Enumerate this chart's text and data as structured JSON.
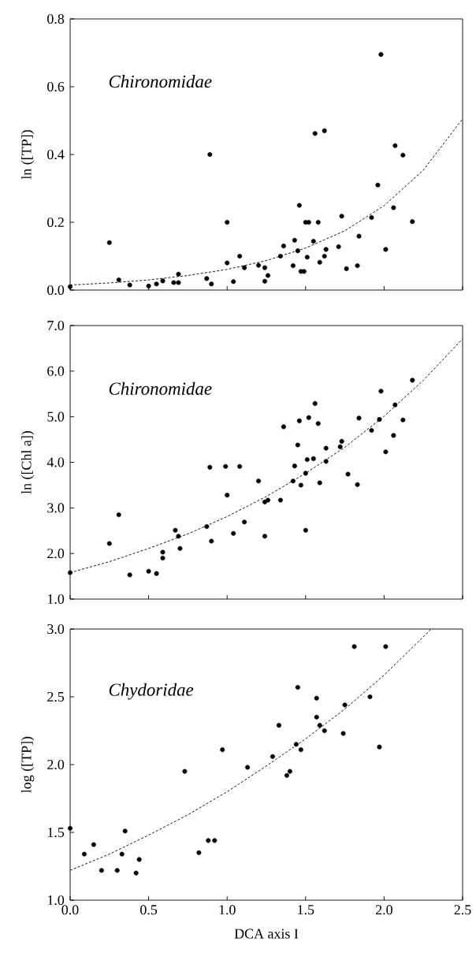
{
  "chart_data": [
    {
      "type": "scatter",
      "ylabel": "ln ([TP])",
      "annotations": [
        "Chironomidae"
      ],
      "xlim": [
        0,
        2.5
      ],
      "ylim": [
        0,
        0.8
      ],
      "xticks": [
        {
          "value": 0,
          "label": null
        },
        {
          "value": 0.5,
          "label": null
        },
        {
          "value": 1,
          "label": null
        },
        {
          "value": 1.5,
          "label": null
        },
        {
          "value": 2,
          "label": null
        },
        {
          "value": 2.5,
          "label": null
        }
      ],
      "yticks": [
        {
          "value": 0,
          "label": "0.0"
        },
        0.2,
        0.4,
        0.6,
        0.8
      ],
      "tick_labels": "y",
      "series": [
        {
          "color": "#000000",
          "marker": "circle",
          "x": [
            0,
            0.25,
            0.31,
            0.38,
            0.5,
            0.55,
            0.59,
            0.66,
            0.69,
            0.69,
            0.87,
            0.89,
            0.9,
            1.0,
            1.0,
            1.04,
            1.08,
            1.11,
            1.2,
            1.24,
            1.24,
            1.26,
            1.34,
            1.36,
            1.42,
            1.43,
            1.45,
            1.46,
            1.47,
            1.49,
            1.5,
            1.52,
            1.51,
            1.55,
            1.56,
            1.58,
            1.59,
            1.62,
            1.63,
            1.62,
            1.71,
            1.73,
            1.76,
            1.83,
            1.84,
            1.92,
            1.96,
            1.98,
            2.01,
            2.06,
            2.07,
            2.12,
            2.18
          ],
          "values": [
            0.01,
            0.14,
            0.03,
            0.015,
            0.012,
            0.018,
            0.027,
            0.022,
            0.047,
            0.022,
            0.034,
            0.4,
            0.018,
            0.2,
            0.08,
            0.025,
            0.1,
            0.066,
            0.073,
            0.066,
            0.026,
            0.043,
            0.1,
            0.13,
            0.072,
            0.147,
            0.116,
            0.25,
            0.055,
            0.055,
            0.2,
            0.2,
            0.097,
            0.144,
            0.462,
            0.2,
            0.082,
            0.47,
            0.12,
            0.1,
            0.128,
            0.218,
            0.063,
            0.072,
            0.159,
            0.214,
            0.31,
            0.695,
            0.12,
            0.243,
            0.426,
            0.398,
            0.202
          ]
        },
        {
          "type": "line",
          "color": "#000000",
          "marker": "none",
          "line_style": "dashed",
          "x": [
            0,
            0.25,
            0.5,
            0.75,
            1.0,
            1.25,
            1.5,
            1.75,
            2.0,
            2.25,
            2.5
          ],
          "values": [
            0.015,
            0.021,
            0.03,
            0.043,
            0.061,
            0.087,
            0.124,
            0.175,
            0.249,
            0.354,
            0.505
          ]
        }
      ]
    },
    {
      "type": "scatter",
      "ylabel": "ln ([Chl a])",
      "annotations": [
        "Chironomidae"
      ],
      "xlim": [
        0,
        2.5
      ],
      "ylim": [
        1,
        7
      ],
      "xticks": [
        {
          "value": 0,
          "label": null
        },
        {
          "value": 0.5,
          "label": null
        },
        {
          "value": 1,
          "label": null
        },
        {
          "value": 1.5,
          "label": null
        },
        {
          "value": 2,
          "label": null
        },
        {
          "value": 2.5,
          "label": null
        }
      ],
      "yticks": [
        {
          "value": 1,
          "label": "1.0"
        },
        {
          "value": 2,
          "label": "2.0"
        },
        {
          "value": 3,
          "label": "3.0"
        },
        {
          "value": 4,
          "label": "4.0"
        },
        {
          "value": 5,
          "label": "5.0"
        },
        {
          "value": 6,
          "label": "6.0"
        },
        {
          "value": 7,
          "label": "7.0"
        }
      ],
      "tick_labels": "y",
      "series": [
        {
          "color": "#000000",
          "marker": "circle",
          "x": [
            0,
            0.25,
            0.31,
            0.38,
            0.5,
            0.55,
            0.59,
            0.59,
            0.67,
            0.69,
            0.7,
            0.87,
            0.89,
            0.9,
            0.99,
            1.0,
            1.04,
            1.08,
            1.11,
            1.2,
            1.24,
            1.26,
            1.24,
            1.34,
            1.36,
            1.42,
            1.43,
            1.46,
            1.45,
            1.47,
            1.5,
            1.51,
            1.52,
            1.55,
            1.56,
            1.58,
            1.59,
            1.5,
            1.63,
            1.63,
            1.72,
            1.73,
            1.77,
            1.83,
            1.84,
            1.92,
            1.97,
            1.98,
            2.01,
            2.06,
            2.07,
            2.12,
            2.18
          ],
          "values": [
            1.58,
            2.22,
            2.85,
            1.53,
            1.61,
            1.56,
            2.03,
            1.9,
            2.51,
            2.38,
            2.11,
            2.59,
            3.89,
            2.27,
            3.91,
            3.28,
            2.44,
            3.91,
            2.69,
            3.59,
            3.13,
            3.17,
            2.38,
            3.17,
            4.78,
            3.59,
            3.92,
            4.91,
            4.38,
            3.5,
            3.76,
            4.06,
            4.98,
            4.08,
            5.29,
            4.85,
            3.55,
            2.51,
            4.02,
            4.31,
            4.34,
            4.46,
            3.74,
            3.51,
            4.97,
            4.7,
            4.94,
            5.56,
            4.23,
            4.59,
            5.26,
            4.93,
            5.8
          ]
        },
        {
          "type": "line",
          "color": "#000000",
          "marker": "none",
          "line_style": "dashed",
          "x": [
            0,
            0.25,
            0.5,
            0.75,
            1.0,
            1.25,
            1.5,
            1.75,
            2.0,
            2.25,
            2.5
          ],
          "values": [
            1.58,
            1.82,
            2.11,
            2.43,
            2.81,
            3.25,
            3.76,
            4.33,
            5.01,
            5.8,
            6.71
          ]
        }
      ]
    },
    {
      "type": "scatter",
      "xlabel": "DCA axis I",
      "ylabel": "log ([TP])",
      "annotations": [
        "Chydoridae"
      ],
      "xlim": [
        0,
        2.5
      ],
      "ylim": [
        1,
        3
      ],
      "xticks": [
        {
          "value": 0,
          "label": "0.0"
        },
        0.5,
        {
          "value": 1,
          "label": "1.0"
        },
        1.5,
        {
          "value": 2,
          "label": "2.0"
        },
        2.5
      ],
      "yticks": [
        {
          "value": 1,
          "label": "1.0"
        },
        1.5,
        {
          "value": 2,
          "label": "2.0"
        },
        2.5,
        {
          "value": 3,
          "label": "3.0"
        }
      ],
      "series": [
        {
          "color": "#000000",
          "marker": "circle",
          "x": [
            0,
            0.09,
            0.15,
            0.2,
            0.3,
            0.33,
            0.35,
            0.42,
            0.44,
            0.73,
            0.82,
            0.88,
            0.92,
            0.97,
            1.13,
            1.29,
            1.33,
            1.38,
            1.4,
            1.44,
            1.45,
            1.47,
            1.57,
            1.57,
            1.59,
            1.62,
            1.74,
            1.75,
            1.81,
            1.91,
            1.97,
            2.01
          ],
          "values": [
            1.53,
            1.34,
            1.41,
            1.22,
            1.22,
            1.34,
            1.51,
            1.2,
            1.3,
            1.95,
            1.35,
            1.44,
            1.44,
            2.11,
            1.98,
            2.06,
            2.29,
            1.92,
            1.95,
            2.15,
            2.57,
            2.11,
            2.49,
            2.35,
            2.29,
            2.25,
            2.23,
            2.44,
            2.87,
            2.5,
            2.13,
            2.87
          ]
        },
        {
          "type": "line",
          "color": "#000000",
          "marker": "none",
          "line_style": "dashed",
          "x": [
            0,
            0.25,
            0.5,
            0.75,
            1.0,
            1.25,
            1.5,
            1.75,
            2.0,
            2.3
          ],
          "values": [
            1.22,
            1.34,
            1.48,
            1.63,
            1.8,
            1.99,
            2.19,
            2.41,
            2.66,
            3.0
          ]
        }
      ]
    }
  ]
}
